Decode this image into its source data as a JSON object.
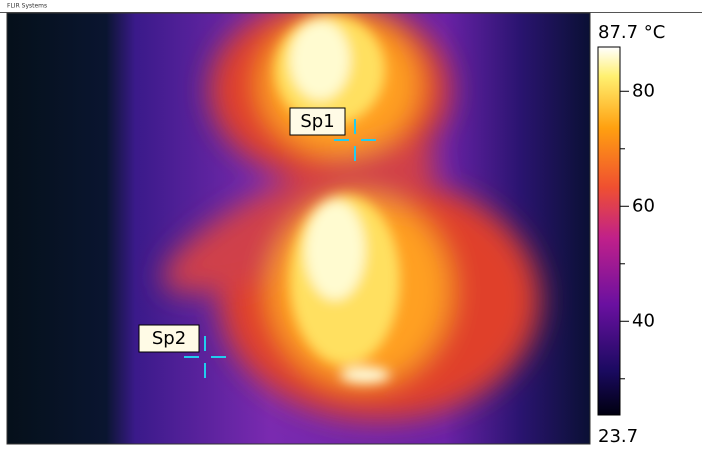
{
  "brand": "FLIR Systems",
  "scale": {
    "max_label": "87.7 °C",
    "min_label": "23.7",
    "max": 87.7,
    "min": 23.7,
    "ticks": [
      40,
      60,
      80
    ],
    "minor_ticks": [
      30,
      50,
      70
    ]
  },
  "spots": [
    {
      "label": "Sp1"
    },
    {
      "label": "Sp2"
    }
  ]
}
